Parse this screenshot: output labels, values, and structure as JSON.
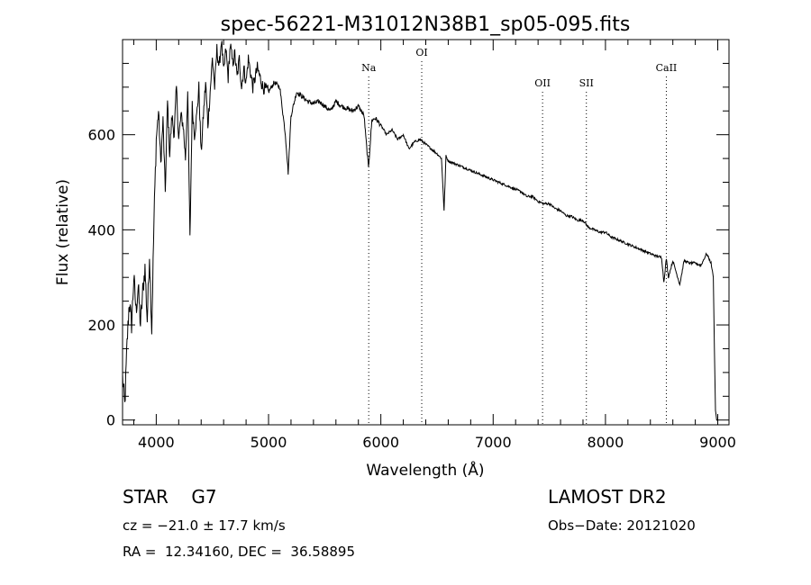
{
  "chart_data": {
    "type": "line",
    "title": "spec-56221-M31012N38B1_sp05-095.fits",
    "xlabel": "Wavelength (Å)",
    "ylabel": "Flux (relative)",
    "xlim": [
      3700,
      9100
    ],
    "ylim": [
      -10,
      800
    ],
    "xticks": [
      4000,
      5000,
      6000,
      7000,
      8000,
      9000
    ],
    "yticks": [
      0,
      200,
      400,
      600
    ],
    "grid": false,
    "series": [
      {
        "x": [
          3700,
          3720,
          3740,
          3760,
          3780,
          3800,
          3820,
          3840,
          3860,
          3880,
          3900,
          3920,
          3940,
          3960,
          3980,
          4000,
          4020,
          4040,
          4060,
          4080,
          4100,
          4120,
          4140,
          4160,
          4180,
          4200,
          4220,
          4240,
          4260,
          4280,
          4300,
          4320,
          4340,
          4360,
          4380,
          4400,
          4420,
          4440,
          4460,
          4480,
          4500,
          4520,
          4540,
          4560,
          4580,
          4600,
          4620,
          4640,
          4660,
          4680,
          4700,
          4720,
          4740,
          4760,
          4780,
          4800,
          4820,
          4840,
          4860,
          4880,
          4900,
          4950,
          5000,
          5050,
          5100,
          5150,
          5175,
          5200,
          5250,
          5300,
          5350,
          5400,
          5450,
          5500,
          5550,
          5600,
          5650,
          5700,
          5750,
          5800,
          5850,
          5890,
          5920,
          5950,
          6000,
          6050,
          6100,
          6150,
          6200,
          6250,
          6300,
          6350,
          6400,
          6450,
          6500,
          6540,
          6563,
          6580,
          6600,
          6650,
          6700,
          6750,
          6800,
          6850,
          6900,
          6950,
          7000,
          7050,
          7100,
          7150,
          7200,
          7250,
          7300,
          7350,
          7400,
          7450,
          7500,
          7550,
          7600,
          7650,
          7700,
          7750,
          7800,
          7850,
          7900,
          7950,
          8000,
          8050,
          8100,
          8150,
          8200,
          8250,
          8300,
          8350,
          8400,
          8450,
          8500,
          8520,
          8542,
          8560,
          8600,
          8662,
          8700,
          8750,
          8800,
          8850,
          8900,
          8940,
          8960,
          8970,
          8980,
          8990,
          9000
        ],
        "y": [
          90,
          30,
          160,
          250,
          200,
          300,
          230,
          280,
          200,
          270,
          320,
          210,
          350,
          190,
          420,
          590,
          650,
          540,
          630,
          480,
          670,
          560,
          640,
          600,
          700,
          590,
          640,
          620,
          550,
          690,
          380,
          660,
          600,
          640,
          700,
          560,
          640,
          710,
          620,
          690,
          760,
          700,
          780,
          740,
          800,
          730,
          780,
          720,
          790,
          750,
          770,
          720,
          760,
          700,
          740,
          710,
          760,
          730,
          700,
          720,
          740,
          700,
          690,
          710,
          700,
          600,
          520,
          640,
          690,
          680,
          670,
          665,
          670,
          660,
          650,
          670,
          660,
          655,
          650,
          660,
          640,
          530,
          630,
          635,
          620,
          600,
          610,
          590,
          600,
          570,
          585,
          590,
          580,
          570,
          560,
          550,
          440,
          555,
          545,
          540,
          535,
          530,
          525,
          520,
          515,
          510,
          505,
          500,
          495,
          490,
          485,
          480,
          470,
          470,
          460,
          455,
          455,
          445,
          440,
          430,
          428,
          420,
          420,
          405,
          400,
          395,
          395,
          385,
          380,
          375,
          370,
          365,
          360,
          355,
          350,
          345,
          342,
          290,
          340,
          300,
          335,
          285,
          335,
          330,
          330,
          325,
          350,
          330,
          300,
          150,
          20,
          0,
          0
        ]
      }
    ]
  },
  "lines": [
    {
      "label": "Na",
      "x": 5892
    },
    {
      "label": "OI",
      "x": 6364
    },
    {
      "label": "OII",
      "x": 7440
    },
    {
      "label": "SII",
      "x": 7830
    },
    {
      "label": "CaII",
      "x": 8542
    }
  ],
  "info": {
    "object": "STAR    G7",
    "survey": "LAMOST DR2",
    "cz": "cz = −21.0 ± 17.7 km/s",
    "obsdate": "Obs−Date: 20121020",
    "radec": "RA =  12.34160, DEC =  36.58895"
  }
}
